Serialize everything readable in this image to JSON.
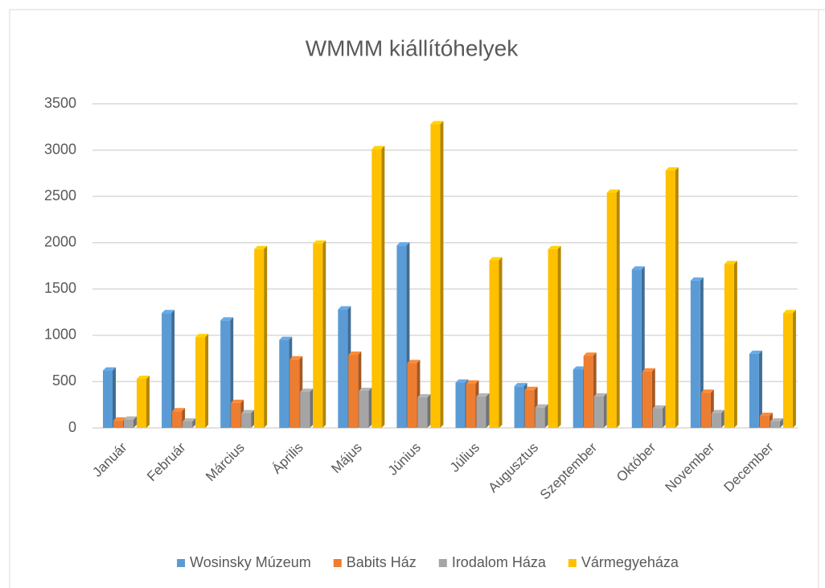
{
  "chart_data": {
    "type": "bar3d",
    "title": "WMMM kiállítóhelyek",
    "categories": [
      "Január",
      "Február",
      "Március",
      "Április",
      "Május",
      "Június",
      "Július",
      "Augusztus",
      "Szeptember",
      "Október",
      "November",
      "December"
    ],
    "series": [
      {
        "name": "Wosinsky Múzeum",
        "color": "#5B9BD5",
        "values": [
          620,
          1240,
          1160,
          950,
          1280,
          1970,
          490,
          450,
          630,
          1710,
          1590,
          800
        ]
      },
      {
        "name": "Babits Ház",
        "color": "#ED7D31",
        "values": [
          80,
          180,
          270,
          740,
          790,
          700,
          480,
          410,
          780,
          610,
          380,
          130
        ]
      },
      {
        "name": "Irodalom Háza",
        "color": "#A5A5A5",
        "values": [
          90,
          70,
          160,
          390,
          400,
          330,
          340,
          220,
          340,
          210,
          160,
          70
        ]
      },
      {
        "name": "Vármegyeháza",
        "color": "#FFC000",
        "values": [
          530,
          980,
          1930,
          1990,
          3010,
          3280,
          1810,
          1930,
          2540,
          2780,
          1770,
          1240
        ]
      }
    ],
    "ylim": [
      0,
      3500
    ],
    "yticks": [
      0,
      500,
      1000,
      1500,
      2000,
      2500,
      3000,
      3500
    ],
    "grid": true,
    "legend": "bottom"
  }
}
